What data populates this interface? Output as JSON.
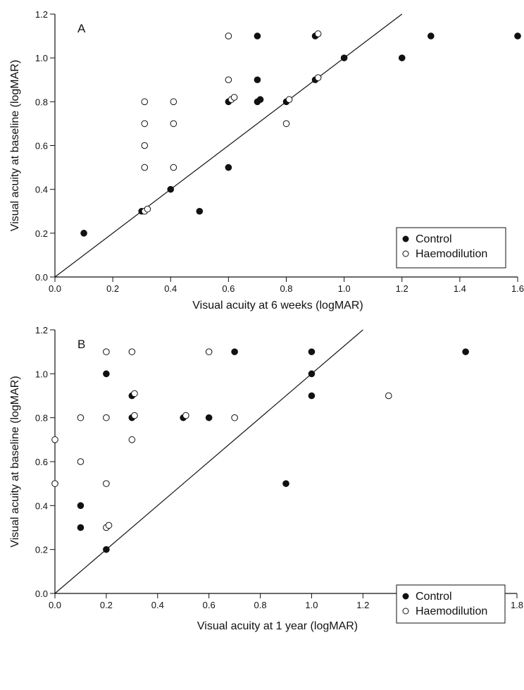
{
  "chart_data": [
    {
      "type": "scatter",
      "panel_label": "A",
      "xlabel": "Visual acuity at 6 weeks (logMAR)",
      "ylabel": "Visual acuity at baseline (logMAR)",
      "xlim": [
        0,
        1.6
      ],
      "ylim": [
        0,
        1.2
      ],
      "xticks": [
        "0.0",
        "0.2",
        "0.4",
        "0.6",
        "0.8",
        "1.0",
        "1.2",
        "1.4",
        "1.6"
      ],
      "yticks": [
        "0.0",
        "0.2",
        "0.4",
        "0.6",
        "0.8",
        "1.0",
        "1.2"
      ],
      "reference_line": "identity",
      "grid": false,
      "legend_position": "bottom-right",
      "series": [
        {
          "name": "Control",
          "marker": "filled-circle",
          "points": [
            [
              0.1,
              0.2
            ],
            [
              0.3,
              0.3
            ],
            [
              0.4,
              0.4
            ],
            [
              0.5,
              0.3
            ],
            [
              0.6,
              0.5
            ],
            [
              0.6,
              0.8
            ],
            [
              0.7,
              0.8
            ],
            [
              0.7,
              0.9
            ],
            [
              0.7,
              1.1
            ],
            [
              0.71,
              0.81
            ],
            [
              0.8,
              0.8
            ],
            [
              0.9,
              0.9
            ],
            [
              0.9,
              1.1
            ],
            [
              1.0,
              1.0
            ],
            [
              1.2,
              1.0
            ],
            [
              1.3,
              1.1
            ],
            [
              1.6,
              1.1
            ]
          ]
        },
        {
          "name": "Haemodilution",
          "marker": "open-circle",
          "points": [
            [
              0.31,
              0.3
            ],
            [
              0.32,
              0.31
            ],
            [
              0.31,
              0.5
            ],
            [
              0.31,
              0.6
            ],
            [
              0.31,
              0.7
            ],
            [
              0.31,
              0.8
            ],
            [
              0.41,
              0.5
            ],
            [
              0.41,
              0.7
            ],
            [
              0.41,
              0.8
            ],
            [
              0.6,
              0.9
            ],
            [
              0.6,
              1.1
            ],
            [
              0.61,
              0.81
            ],
            [
              0.62,
              0.82
            ],
            [
              0.8,
              0.7
            ],
            [
              0.81,
              0.81
            ],
            [
              0.91,
              0.91
            ],
            [
              0.91,
              1.11
            ]
          ]
        }
      ]
    },
    {
      "type": "scatter",
      "panel_label": "B",
      "xlabel": "Visual acuity at 1 year (logMAR)",
      "ylabel": "Visual acuity at baseline (logMAR)",
      "xlim": [
        0,
        1.8
      ],
      "ylim": [
        0,
        1.2
      ],
      "xticks": [
        "0.0",
        "0.2",
        "0.4",
        "0.6",
        "0.8",
        "1.0",
        "1.2",
        "1.4",
        "1.6",
        "1.8"
      ],
      "yticks": [
        "0.0",
        "0.2",
        "0.4",
        "0.6",
        "0.8",
        "1.0",
        "1.2"
      ],
      "reference_line": "identity",
      "grid": false,
      "legend_position": "bottom-right",
      "series": [
        {
          "name": "Control",
          "marker": "filled-circle",
          "points": [
            [
              0.1,
              0.3
            ],
            [
              0.1,
              0.4
            ],
            [
              0.2,
              0.2
            ],
            [
              0.2,
              1.0
            ],
            [
              0.3,
              0.8
            ],
            [
              0.3,
              0.9
            ],
            [
              0.5,
              0.8
            ],
            [
              0.6,
              0.8
            ],
            [
              0.7,
              1.1
            ],
            [
              0.9,
              0.5
            ],
            [
              1.0,
              0.9
            ],
            [
              1.0,
              1.0
            ],
            [
              1.0,
              1.1
            ],
            [
              1.6,
              1.1
            ]
          ]
        },
        {
          "name": "Haemodilution",
          "marker": "open-circle",
          "points": [
            [
              0.0,
              0.5
            ],
            [
              0.0,
              0.7
            ],
            [
              0.1,
              0.6
            ],
            [
              0.1,
              0.8
            ],
            [
              0.2,
              0.3
            ],
            [
              0.21,
              0.31
            ],
            [
              0.2,
              0.5
            ],
            [
              0.2,
              0.8
            ],
            [
              0.2,
              1.1
            ],
            [
              0.3,
              0.7
            ],
            [
              0.31,
              0.81
            ],
            [
              0.31,
              0.91
            ],
            [
              0.3,
              1.1
            ],
            [
              0.51,
              0.81
            ],
            [
              0.6,
              1.1
            ],
            [
              0.7,
              0.8
            ],
            [
              1.3,
              0.9
            ]
          ]
        }
      ]
    }
  ]
}
